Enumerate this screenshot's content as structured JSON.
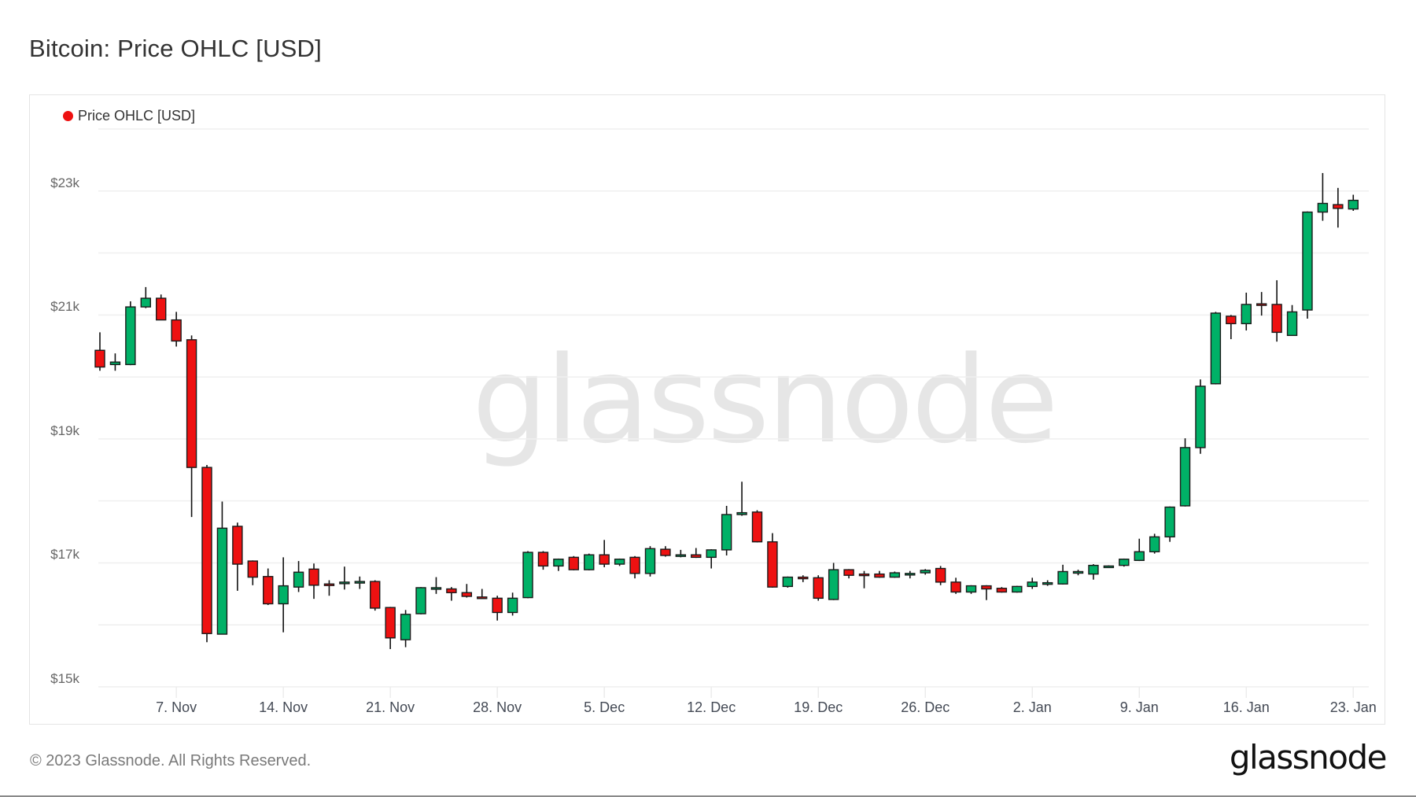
{
  "title": "Bitcoin: Price OHLC [USD]",
  "legend": {
    "label": "Price OHLC [USD]",
    "color": "#ee1111"
  },
  "watermark": "glassnode",
  "footer": {
    "copyright": "© 2023 Glassnode. All Rights Reserved.",
    "logo": "glassnode"
  },
  "colors": {
    "up": "#00b167",
    "down": "#ee1111",
    "wick": "#111111",
    "grid": "#efefef"
  },
  "chart_data": {
    "type": "candlestick",
    "title": "Bitcoin: Price OHLC [USD]",
    "xlabel": "",
    "ylabel": "",
    "ylim": [
      15000,
      24000
    ],
    "grid": true,
    "legend_position": "top-left",
    "legend": [
      "Price OHLC [USD]"
    ],
    "y_ticks": [
      {
        "value": 15000,
        "label": "$15k"
      },
      {
        "value": 17000,
        "label": "$17k"
      },
      {
        "value": 19000,
        "label": "$19k"
      },
      {
        "value": 21000,
        "label": "$21k"
      },
      {
        "value": 23000,
        "label": "$23k"
      }
    ],
    "y_gridlines": [
      15000,
      16000,
      17000,
      18000,
      19000,
      20000,
      21000,
      22000,
      23000,
      24000
    ],
    "x_ticks": [
      {
        "day": 5,
        "label": "7. Nov"
      },
      {
        "day": 12,
        "label": "14. Nov"
      },
      {
        "day": 19,
        "label": "21. Nov"
      },
      {
        "day": 26,
        "label": "28. Nov"
      },
      {
        "day": 33,
        "label": "5. Dec"
      },
      {
        "day": 40,
        "label": "12. Dec"
      },
      {
        "day": 47,
        "label": "19. Dec"
      },
      {
        "day": 54,
        "label": "26. Dec"
      },
      {
        "day": 61,
        "label": "2. Jan"
      },
      {
        "day": 68,
        "label": "9. Jan"
      },
      {
        "day": 75,
        "label": "16. Jan"
      },
      {
        "day": 82,
        "label": "23. Jan"
      }
    ],
    "series": [
      {
        "name": "Price OHLC [USD]",
        "columns": [
          "date",
          "open",
          "high",
          "low",
          "close"
        ],
        "values": [
          [
            "2 Nov",
            20430,
            20720,
            20100,
            20160
          ],
          [
            "3 Nov",
            20200,
            20380,
            20100,
            20240
          ],
          [
            "4 Nov",
            20200,
            21220,
            20190,
            21130
          ],
          [
            "5 Nov",
            21130,
            21450,
            21110,
            21270
          ],
          [
            "6 Nov",
            21270,
            21330,
            20920,
            20920
          ],
          [
            "7 Nov",
            20920,
            21050,
            20490,
            20580
          ],
          [
            "8 Nov",
            20600,
            20670,
            17740,
            18540
          ],
          [
            "9 Nov",
            18540,
            18580,
            15720,
            15860
          ],
          [
            "10 Nov",
            15850,
            17990,
            15850,
            17560
          ],
          [
            "11 Nov",
            17590,
            17650,
            16550,
            16980
          ],
          [
            "12 Nov",
            17030,
            17040,
            16640,
            16770
          ],
          [
            "13 Nov",
            16780,
            16910,
            16320,
            16340
          ],
          [
            "14 Nov",
            16340,
            17090,
            15880,
            16630
          ],
          [
            "15 Nov",
            16610,
            17030,
            16530,
            16850
          ],
          [
            "16 Nov",
            16900,
            16990,
            16420,
            16640
          ],
          [
            "17 Nov",
            16660,
            16720,
            16470,
            16650
          ],
          [
            "18 Nov",
            16670,
            16940,
            16570,
            16690
          ],
          [
            "19 Nov",
            16690,
            16780,
            16580,
            16700
          ],
          [
            "20 Nov",
            16700,
            16720,
            16230,
            16270
          ],
          [
            "21 Nov",
            16280,
            16290,
            15610,
            15790
          ],
          [
            "22 Nov",
            15760,
            16240,
            15640,
            16170
          ],
          [
            "23 Nov",
            16180,
            16610,
            16170,
            16600
          ],
          [
            "24 Nov",
            16590,
            16770,
            16500,
            16600
          ],
          [
            "25 Nov",
            16580,
            16610,
            16390,
            16520
          ],
          [
            "26 Nov",
            16520,
            16660,
            16440,
            16460
          ],
          [
            "27 Nov",
            16450,
            16580,
            16420,
            16440
          ],
          [
            "28 Nov",
            16430,
            16470,
            16070,
            16200
          ],
          [
            "29 Nov",
            16200,
            16520,
            16150,
            16430
          ],
          [
            "30 Nov",
            16440,
            17190,
            16430,
            17170
          ],
          [
            "1 Dec",
            17170,
            17190,
            16890,
            16950
          ],
          [
            "2 Dec",
            16950,
            17070,
            16870,
            17060
          ],
          [
            "3 Dec",
            17090,
            17110,
            16880,
            16890
          ],
          [
            "4 Dec",
            16890,
            17150,
            16880,
            17130
          ],
          [
            "5 Dec",
            17130,
            17370,
            16930,
            16980
          ],
          [
            "6 Dec",
            16980,
            17070,
            16950,
            17060
          ],
          [
            "7 Dec",
            17090,
            17110,
            16750,
            16830
          ],
          [
            "8 Dec",
            16830,
            17270,
            16780,
            17230
          ],
          [
            "9 Dec",
            17220,
            17270,
            17100,
            17120
          ],
          [
            "10 Dec",
            17120,
            17210,
            17090,
            17130
          ],
          [
            "11 Dec",
            17130,
            17240,
            17080,
            17090
          ],
          [
            "12 Dec",
            17090,
            17220,
            16910,
            17210
          ],
          [
            "13 Dec",
            17210,
            17920,
            17120,
            17780
          ],
          [
            "14 Dec",
            17780,
            18310,
            17760,
            17810
          ],
          [
            "15 Dec",
            17820,
            17850,
            17330,
            17340
          ],
          [
            "16 Dec",
            17340,
            17480,
            16600,
            16610
          ],
          [
            "17 Dec",
            16620,
            16780,
            16600,
            16770
          ],
          [
            "18 Dec",
            16770,
            16800,
            16690,
            16760
          ],
          [
            "19 Dec",
            16760,
            16800,
            16390,
            16430
          ],
          [
            "20 Dec",
            16410,
            17000,
            16400,
            16890
          ],
          [
            "21 Dec",
            16890,
            16900,
            16750,
            16800
          ],
          [
            "22 Dec",
            16820,
            16870,
            16590,
            16810
          ],
          [
            "23 Dec",
            16820,
            16870,
            16760,
            16770
          ],
          [
            "24 Dec",
            16770,
            16860,
            16760,
            16840
          ],
          [
            "25 Dec",
            16820,
            16870,
            16750,
            16830
          ],
          [
            "26 Dec",
            16840,
            16900,
            16810,
            16880
          ],
          [
            "27 Dec",
            16910,
            16950,
            16640,
            16690
          ],
          [
            "28 Dec",
            16690,
            16760,
            16500,
            16530
          ],
          [
            "29 Dec",
            16530,
            16640,
            16500,
            16630
          ],
          [
            "30 Dec",
            16630,
            16640,
            16400,
            16580
          ],
          [
            "31 Dec",
            16590,
            16610,
            16520,
            16530
          ],
          [
            "1 Jan",
            16530,
            16630,
            16520,
            16620
          ],
          [
            "2 Jan",
            16620,
            16760,
            16580,
            16690
          ],
          [
            "3 Jan",
            16670,
            16720,
            16630,
            16680
          ],
          [
            "4 Jan",
            16660,
            16970,
            16650,
            16860
          ],
          [
            "5 Jan",
            16850,
            16890,
            16800,
            16860
          ],
          [
            "6 Jan",
            16820,
            16980,
            16730,
            16960
          ],
          [
            "7 Jan",
            16940,
            16960,
            16920,
            16950
          ],
          [
            "8 Jan",
            16960,
            17070,
            16940,
            17060
          ],
          [
            "9 Jan",
            17040,
            17390,
            17030,
            17180
          ],
          [
            "10 Jan",
            17180,
            17470,
            17150,
            17420
          ],
          [
            "11 Jan",
            17420,
            17910,
            17340,
            17900
          ],
          [
            "12 Jan",
            17920,
            19010,
            17910,
            18860
          ],
          [
            "13 Jan",
            18860,
            19960,
            18760,
            19850
          ],
          [
            "14 Jan",
            19890,
            21050,
            19880,
            21030
          ],
          [
            "15 Jan",
            20980,
            21000,
            20610,
            20860
          ],
          [
            "16 Jan",
            20860,
            21360,
            20750,
            21170
          ],
          [
            "17 Jan",
            21180,
            21370,
            20990,
            21160
          ],
          [
            "18 Jan",
            21170,
            21560,
            20570,
            20720
          ],
          [
            "19 Jan",
            20670,
            21160,
            20670,
            21050
          ],
          [
            "20 Jan",
            21080,
            22670,
            20940,
            22660
          ],
          [
            "21 Jan",
            22660,
            23290,
            22520,
            22800
          ],
          [
            "22 Jan",
            22780,
            23050,
            22410,
            22720
          ],
          [
            "23 Jan",
            22710,
            22940,
            22680,
            22850
          ]
        ]
      }
    ]
  }
}
